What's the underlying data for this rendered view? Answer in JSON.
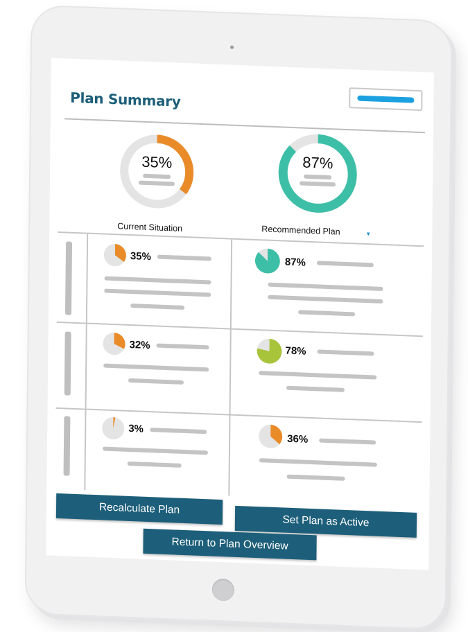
{
  "header": {
    "title": "Plan Summary"
  },
  "colors": {
    "brand": "#1d5f7a",
    "current": "#ea8b2a",
    "recommended": "#3dbfa7",
    "lime": "#a8c43a",
    "track": "#e4e4e4",
    "placeholder": "#c4c4c4",
    "header_button_bar": "#1ba0e0"
  },
  "donuts": {
    "current": {
      "percent_label": "35%",
      "value": 0.35,
      "label": "Current Situation"
    },
    "recommended": {
      "percent_label": "87%",
      "value": 0.87,
      "label": "Recommended Plan",
      "dropdown_icon": "caret-down-icon"
    }
  },
  "rows": [
    {
      "current": {
        "percent_label": "35%",
        "value": 0.35,
        "color": "#ea8b2a"
      },
      "recommended": {
        "percent_label": "87%",
        "value": 0.87,
        "color": "#3dbfa7"
      }
    },
    {
      "current": {
        "percent_label": "32%",
        "value": 0.32,
        "color": "#ea8b2a"
      },
      "recommended": {
        "percent_label": "78%",
        "value": 0.78,
        "color": "#a8c43a"
      }
    },
    {
      "current": {
        "percent_label": "3%",
        "value": 0.03,
        "color": "#ea8b2a"
      },
      "recommended": {
        "percent_label": "36%",
        "value": 0.36,
        "color": "#ea8b2a"
      }
    }
  ],
  "buttons": {
    "recalculate": "Recalculate Plan",
    "set_active": "Set Plan as Active",
    "return": "Return to Plan Overview"
  }
}
